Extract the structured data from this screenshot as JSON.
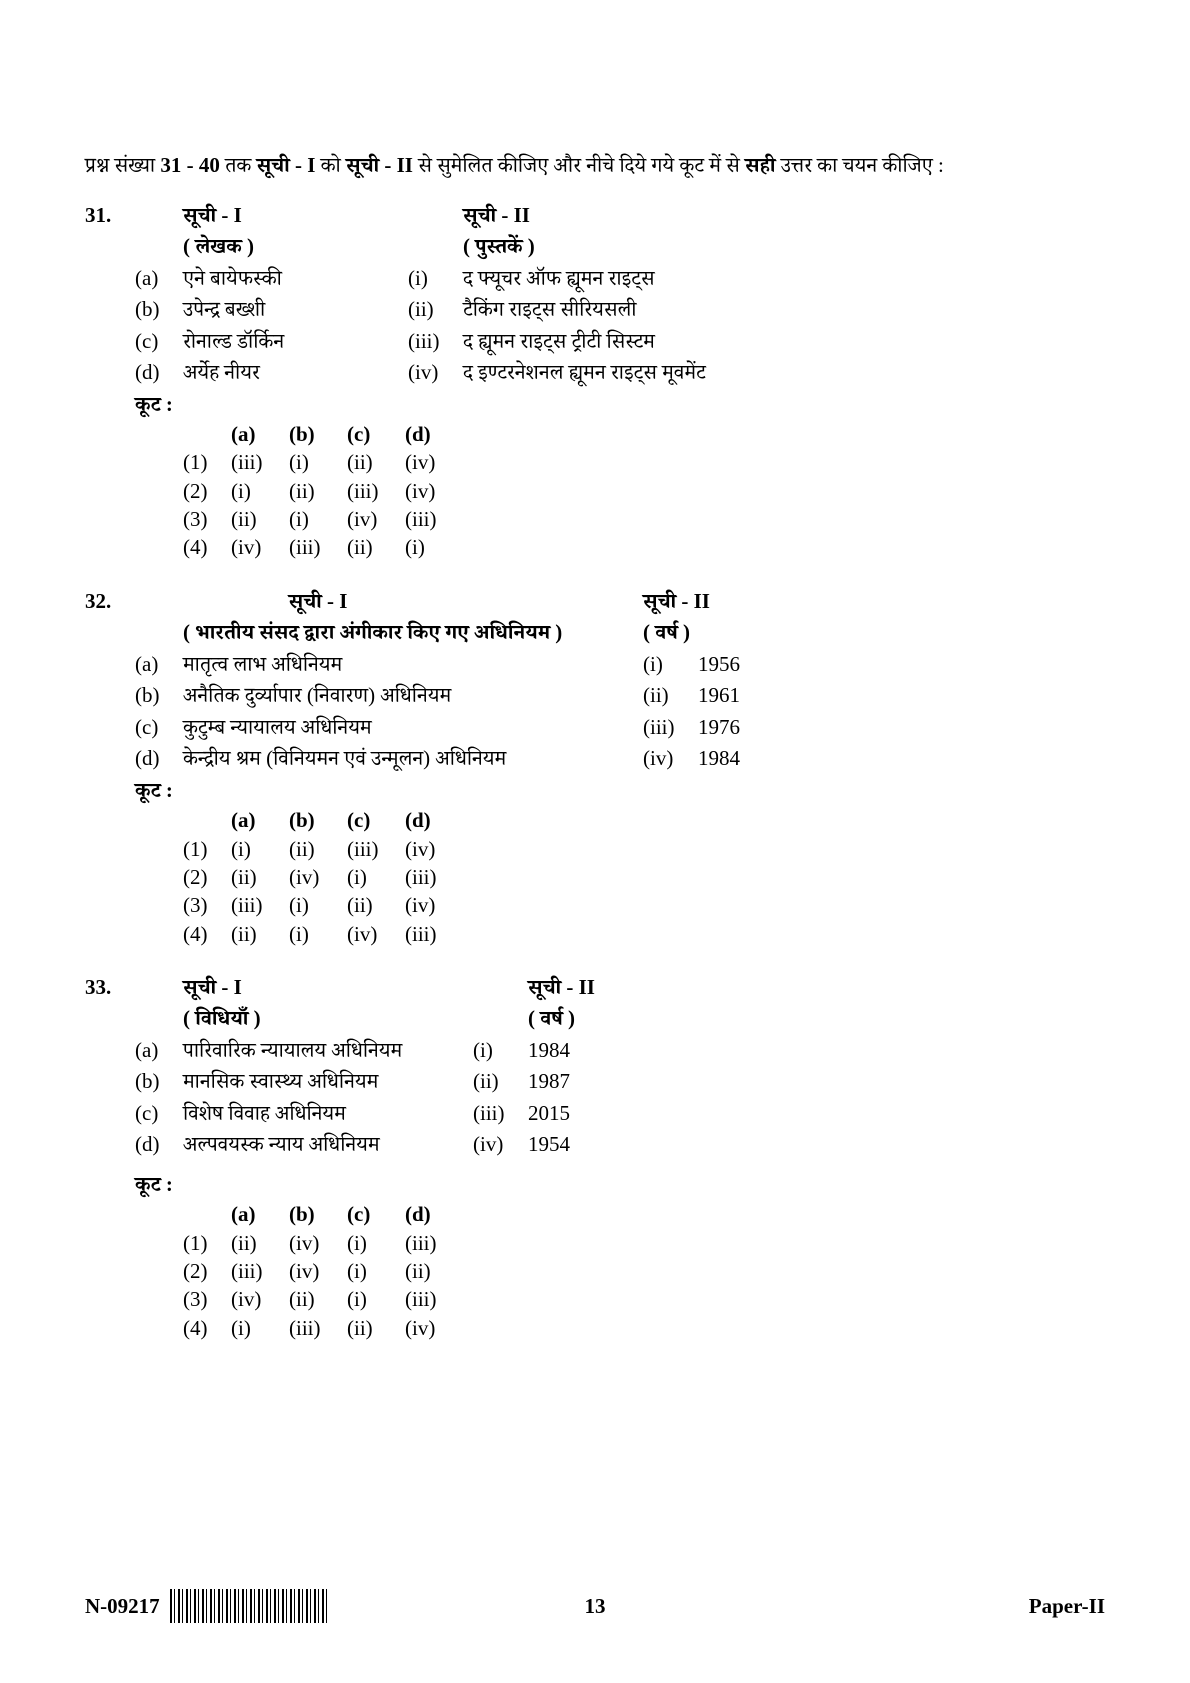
{
  "intro": {
    "t1": "प्रश्न संख्या ",
    "range": "31 - 40",
    "t2": "  तक ",
    "s1": "सूची - I",
    "t3": " को ",
    "s2": "सूची - II",
    "t4": " से सुमेलित कीजिए और नीचे दिये गये कूट में से ",
    "sahi": "सही",
    "t5": " उत्तर का चयन कीजिए :"
  },
  "q31": {
    "num": "31.",
    "list1_h": "सूची - I",
    "list1_sub": "( लेखक )",
    "list2_h": "सूची - II",
    "list2_sub": "( पुस्तकें )",
    "rows": [
      {
        "k": "(a)",
        "l1": "एने बायेफस्की",
        "n": "(i)",
        "l2": "द फ्यूचर ऑफ ह्यूमन राइट्स"
      },
      {
        "k": "(b)",
        "l1": "उपेन्द्र बख्शी",
        "n": "(ii)",
        "l2": "टैकिंग राइट्स सीरियसली"
      },
      {
        "k": "(c)",
        "l1": "रोनाल्ड डॉर्किन",
        "n": "(iii)",
        "l2": "द ह्यूमन राइट्स ट्रीटी सिस्टम"
      },
      {
        "k": "(d)",
        "l1": "अर्येह नीयर",
        "n": "(iv)",
        "l2": "द इण्टरनेशनल ह्यूमन राइट्स मूवमेंट"
      }
    ],
    "code": "कूट :",
    "hdr": [
      "(a)",
      "(b)",
      "(c)",
      "(d)"
    ],
    "opts": [
      {
        "n": "(1)",
        "v": [
          "(iii)",
          "(i)",
          "(ii)",
          "(iv)"
        ]
      },
      {
        "n": "(2)",
        "v": [
          "(i)",
          "(ii)",
          "(iii)",
          "(iv)"
        ]
      },
      {
        "n": "(3)",
        "v": [
          "(ii)",
          "(i)",
          "(iv)",
          "(iii)"
        ]
      },
      {
        "n": "(4)",
        "v": [
          "(iv)",
          "(iii)",
          "(ii)",
          "(i)"
        ]
      }
    ]
  },
  "q32": {
    "num": "32.",
    "list1_h": "सूची - I",
    "list1_sub": "( भारतीय संसद द्वारा अंगीकार किए गए अधिनियम )",
    "list2_h": "सूची - II",
    "list2_sub": "( वर्ष )",
    "rows": [
      {
        "k": "(a)",
        "l1": "मातृत्व लाभ अधिनियम",
        "n": "(i)",
        "l2": "1956"
      },
      {
        "k": "(b)",
        "l1": "अनैतिक दुर्व्यापार (निवारण)  अधिनियम",
        "n": "(ii)",
        "l2": "1961"
      },
      {
        "k": "(c)",
        "l1": "कुटुम्ब न्यायालय अधिनियम",
        "n": "(iii)",
        "l2": "1976"
      },
      {
        "k": "(d)",
        "l1": "केन्द्रीय श्रम (विनियमन एवं उन्मूलन)  अधिनियम",
        "n": "(iv)",
        "l2": "1984"
      }
    ],
    "code": "कूट :",
    "hdr": [
      "(a)",
      "(b)",
      "(c)",
      "(d)"
    ],
    "opts": [
      {
        "n": "(1)",
        "v": [
          "(i)",
          "(ii)",
          "(iii)",
          "(iv)"
        ]
      },
      {
        "n": "(2)",
        "v": [
          "(ii)",
          "(iv)",
          "(i)",
          "(iii)"
        ]
      },
      {
        "n": "(3)",
        "v": [
          "(iii)",
          "(i)",
          "(ii)",
          "(iv)"
        ]
      },
      {
        "n": "(4)",
        "v": [
          "(ii)",
          "(i)",
          "(iv)",
          "(iii)"
        ]
      }
    ]
  },
  "q33": {
    "num": "33.",
    "list1_h": "सूची - I",
    "list1_sub": "( विधियाँ )",
    "list2_h": "सूची - II",
    "list2_sub": "( वर्ष )",
    "rows": [
      {
        "k": "(a)",
        "l1": "पारिवारिक न्यायालय अधिनियम",
        "n": "(i)",
        "l2": "1984"
      },
      {
        "k": "(b)",
        "l1": "मानसिक स्वास्थ्य अधिनियम",
        "n": "(ii)",
        "l2": "1987"
      },
      {
        "k": "(c)",
        "l1": "विशेष विवाह अधिनियम",
        "n": "(iii)",
        "l2": "2015"
      },
      {
        "k": "(d)",
        "l1": "अल्पवयस्क न्याय अधिनियम",
        "n": "(iv)",
        "l2": "1954"
      }
    ],
    "code": "कूट :",
    "hdr": [
      "(a)",
      "(b)",
      "(c)",
      "(d)"
    ],
    "opts": [
      {
        "n": "(1)",
        "v": [
          "(ii)",
          "(iv)",
          "(i)",
          "(iii)"
        ]
      },
      {
        "n": "(2)",
        "v": [
          "(iii)",
          "(iv)",
          "(i)",
          "(ii)"
        ]
      },
      {
        "n": "(3)",
        "v": [
          "(iv)",
          "(ii)",
          "(i)",
          "(iii)"
        ]
      },
      {
        "n": "(4)",
        "v": [
          "(i)",
          "(iii)",
          "(ii)",
          "(iv)"
        ]
      }
    ]
  },
  "footer": {
    "code": "N-09217",
    "page": "13",
    "paper": "Paper-II"
  }
}
